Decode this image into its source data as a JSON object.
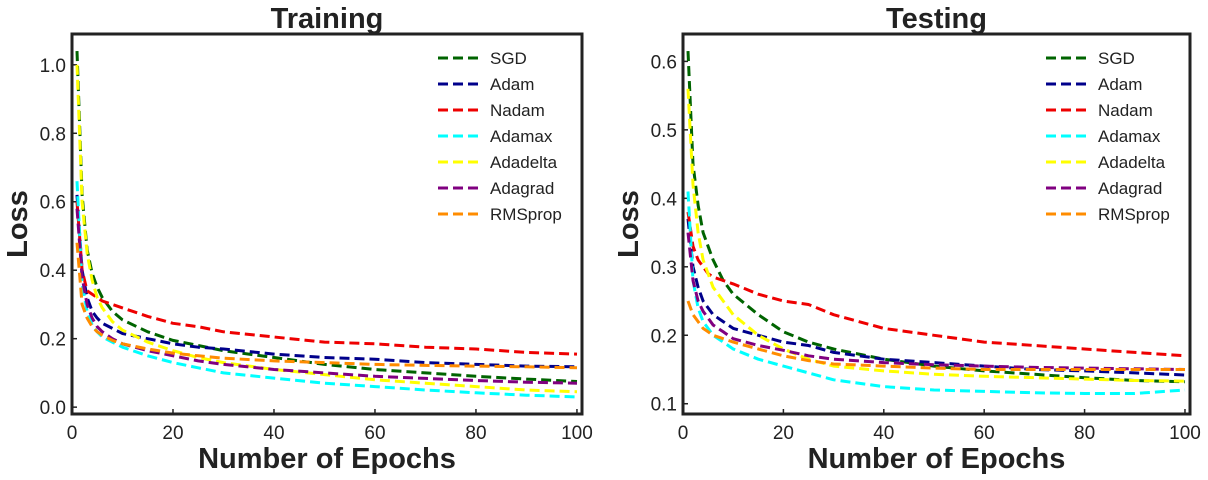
{
  "chart_data": [
    {
      "type": "line",
      "title": "Training",
      "xlabel": "Number of Epochs",
      "ylabel": "Loss",
      "xlim": [
        0,
        101
      ],
      "ylim": [
        -0.02,
        1.09
      ],
      "xticks": [
        0,
        20,
        40,
        60,
        80,
        100
      ],
      "yticks": [
        0.0,
        0.2,
        0.4,
        0.6,
        0.8,
        1.0
      ],
      "xtick_labels": [
        "0",
        "20",
        "40",
        "60",
        "80",
        "100"
      ],
      "ytick_labels": [
        "0.0",
        "0.2",
        "0.4",
        "0.6",
        "0.8",
        "1.0"
      ],
      "grid": false,
      "legend_position": "top-right",
      "x": [
        1,
        2,
        3,
        4,
        5,
        6,
        8,
        10,
        15,
        20,
        25,
        30,
        40,
        50,
        60,
        70,
        80,
        90,
        100
      ],
      "series": [
        {
          "name": "SGD",
          "color": "#006400",
          "values": [
            1.04,
            0.62,
            0.46,
            0.39,
            0.35,
            0.32,
            0.28,
            0.255,
            0.22,
            0.195,
            0.18,
            0.165,
            0.145,
            0.125,
            0.11,
            0.1,
            0.09,
            0.082,
            0.075
          ]
        },
        {
          "name": "Adam",
          "color": "#00008B",
          "values": [
            0.62,
            0.4,
            0.32,
            0.28,
            0.26,
            0.245,
            0.23,
            0.215,
            0.2,
            0.185,
            0.175,
            0.17,
            0.155,
            0.145,
            0.14,
            0.13,
            0.125,
            0.12,
            0.118
          ]
        },
        {
          "name": "Nadam",
          "color": "#EE0000",
          "values": [
            0.6,
            0.4,
            0.34,
            0.33,
            0.32,
            0.31,
            0.3,
            0.29,
            0.265,
            0.245,
            0.235,
            0.22,
            0.205,
            0.19,
            0.185,
            0.175,
            0.17,
            0.16,
            0.155
          ]
        },
        {
          "name": "Adamax",
          "color": "#00FFFF",
          "values": [
            0.66,
            0.36,
            0.28,
            0.24,
            0.22,
            0.205,
            0.19,
            0.175,
            0.15,
            0.13,
            0.115,
            0.1,
            0.085,
            0.07,
            0.06,
            0.05,
            0.042,
            0.035,
            0.03
          ]
        },
        {
          "name": "Adadelta",
          "color": "#FFFF00",
          "values": [
            1.0,
            0.6,
            0.45,
            0.37,
            0.32,
            0.29,
            0.25,
            0.225,
            0.19,
            0.165,
            0.145,
            0.13,
            0.11,
            0.095,
            0.08,
            0.07,
            0.06,
            0.05,
            0.045
          ]
        },
        {
          "name": "Adagrad",
          "color": "#800080",
          "values": [
            0.58,
            0.38,
            0.3,
            0.26,
            0.235,
            0.22,
            0.2,
            0.185,
            0.165,
            0.15,
            0.135,
            0.125,
            0.11,
            0.1,
            0.09,
            0.084,
            0.078,
            0.073,
            0.07
          ]
        },
        {
          "name": "RMSprop",
          "color": "#FF8C00",
          "values": [
            0.48,
            0.3,
            0.26,
            0.235,
            0.22,
            0.21,
            0.195,
            0.185,
            0.17,
            0.158,
            0.15,
            0.143,
            0.135,
            0.13,
            0.125,
            0.122,
            0.12,
            0.118,
            0.115
          ]
        }
      ]
    },
    {
      "type": "line",
      "title": "Testing",
      "xlabel": "Number of Epochs",
      "ylabel": "Loss",
      "xlim": [
        0,
        101
      ],
      "ylim": [
        0.085,
        0.64
      ],
      "xticks": [
        0,
        20,
        40,
        60,
        80,
        100
      ],
      "yticks": [
        0.1,
        0.2,
        0.3,
        0.4,
        0.5,
        0.6
      ],
      "xtick_labels": [
        "0",
        "20",
        "40",
        "60",
        "80",
        "100"
      ],
      "ytick_labels": [
        "0.1",
        "0.2",
        "0.3",
        "0.4",
        "0.5",
        "0.6"
      ],
      "grid": false,
      "legend_position": "top-right",
      "x": [
        1,
        2,
        3,
        4,
        5,
        6,
        8,
        10,
        15,
        20,
        25,
        30,
        40,
        50,
        60,
        70,
        80,
        90,
        100
      ],
      "series": [
        {
          "name": "SGD",
          "color": "#006400",
          "values": [
            0.615,
            0.45,
            0.39,
            0.35,
            0.33,
            0.31,
            0.28,
            0.26,
            0.23,
            0.205,
            0.19,
            0.18,
            0.165,
            0.155,
            0.148,
            0.143,
            0.138,
            0.134,
            0.132
          ]
        },
        {
          "name": "Adam",
          "color": "#00008B",
          "values": [
            0.37,
            0.3,
            0.27,
            0.25,
            0.24,
            0.23,
            0.22,
            0.21,
            0.2,
            0.19,
            0.185,
            0.175,
            0.165,
            0.16,
            0.155,
            0.15,
            0.148,
            0.145,
            0.142
          ]
        },
        {
          "name": "Nadam",
          "color": "#EE0000",
          "values": [
            0.38,
            0.33,
            0.31,
            0.3,
            0.29,
            0.285,
            0.28,
            0.275,
            0.26,
            0.25,
            0.245,
            0.23,
            0.21,
            0.2,
            0.19,
            0.185,
            0.18,
            0.175,
            0.17
          ]
        },
        {
          "name": "Adamax",
          "color": "#00FFFF",
          "values": [
            0.41,
            0.28,
            0.24,
            0.22,
            0.21,
            0.2,
            0.19,
            0.18,
            0.165,
            0.155,
            0.145,
            0.135,
            0.125,
            0.12,
            0.118,
            0.116,
            0.115,
            0.115,
            0.12
          ]
        },
        {
          "name": "Adadelta",
          "color": "#FFFF00",
          "values": [
            0.56,
            0.42,
            0.35,
            0.31,
            0.29,
            0.27,
            0.25,
            0.23,
            0.2,
            0.18,
            0.165,
            0.155,
            0.148,
            0.143,
            0.14,
            0.138,
            0.136,
            0.134,
            0.133
          ]
        },
        {
          "name": "Adagrad",
          "color": "#800080",
          "values": [
            0.35,
            0.28,
            0.25,
            0.235,
            0.225,
            0.215,
            0.205,
            0.195,
            0.185,
            0.178,
            0.17,
            0.165,
            0.16,
            0.157,
            0.155,
            0.153,
            0.152,
            0.151,
            0.15
          ]
        },
        {
          "name": "RMSprop",
          "color": "#FF8C00",
          "values": [
            0.25,
            0.23,
            0.22,
            0.21,
            0.205,
            0.2,
            0.195,
            0.19,
            0.18,
            0.17,
            0.163,
            0.158,
            0.155,
            0.152,
            0.15,
            0.15,
            0.15,
            0.15,
            0.15
          ]
        }
      ]
    }
  ]
}
